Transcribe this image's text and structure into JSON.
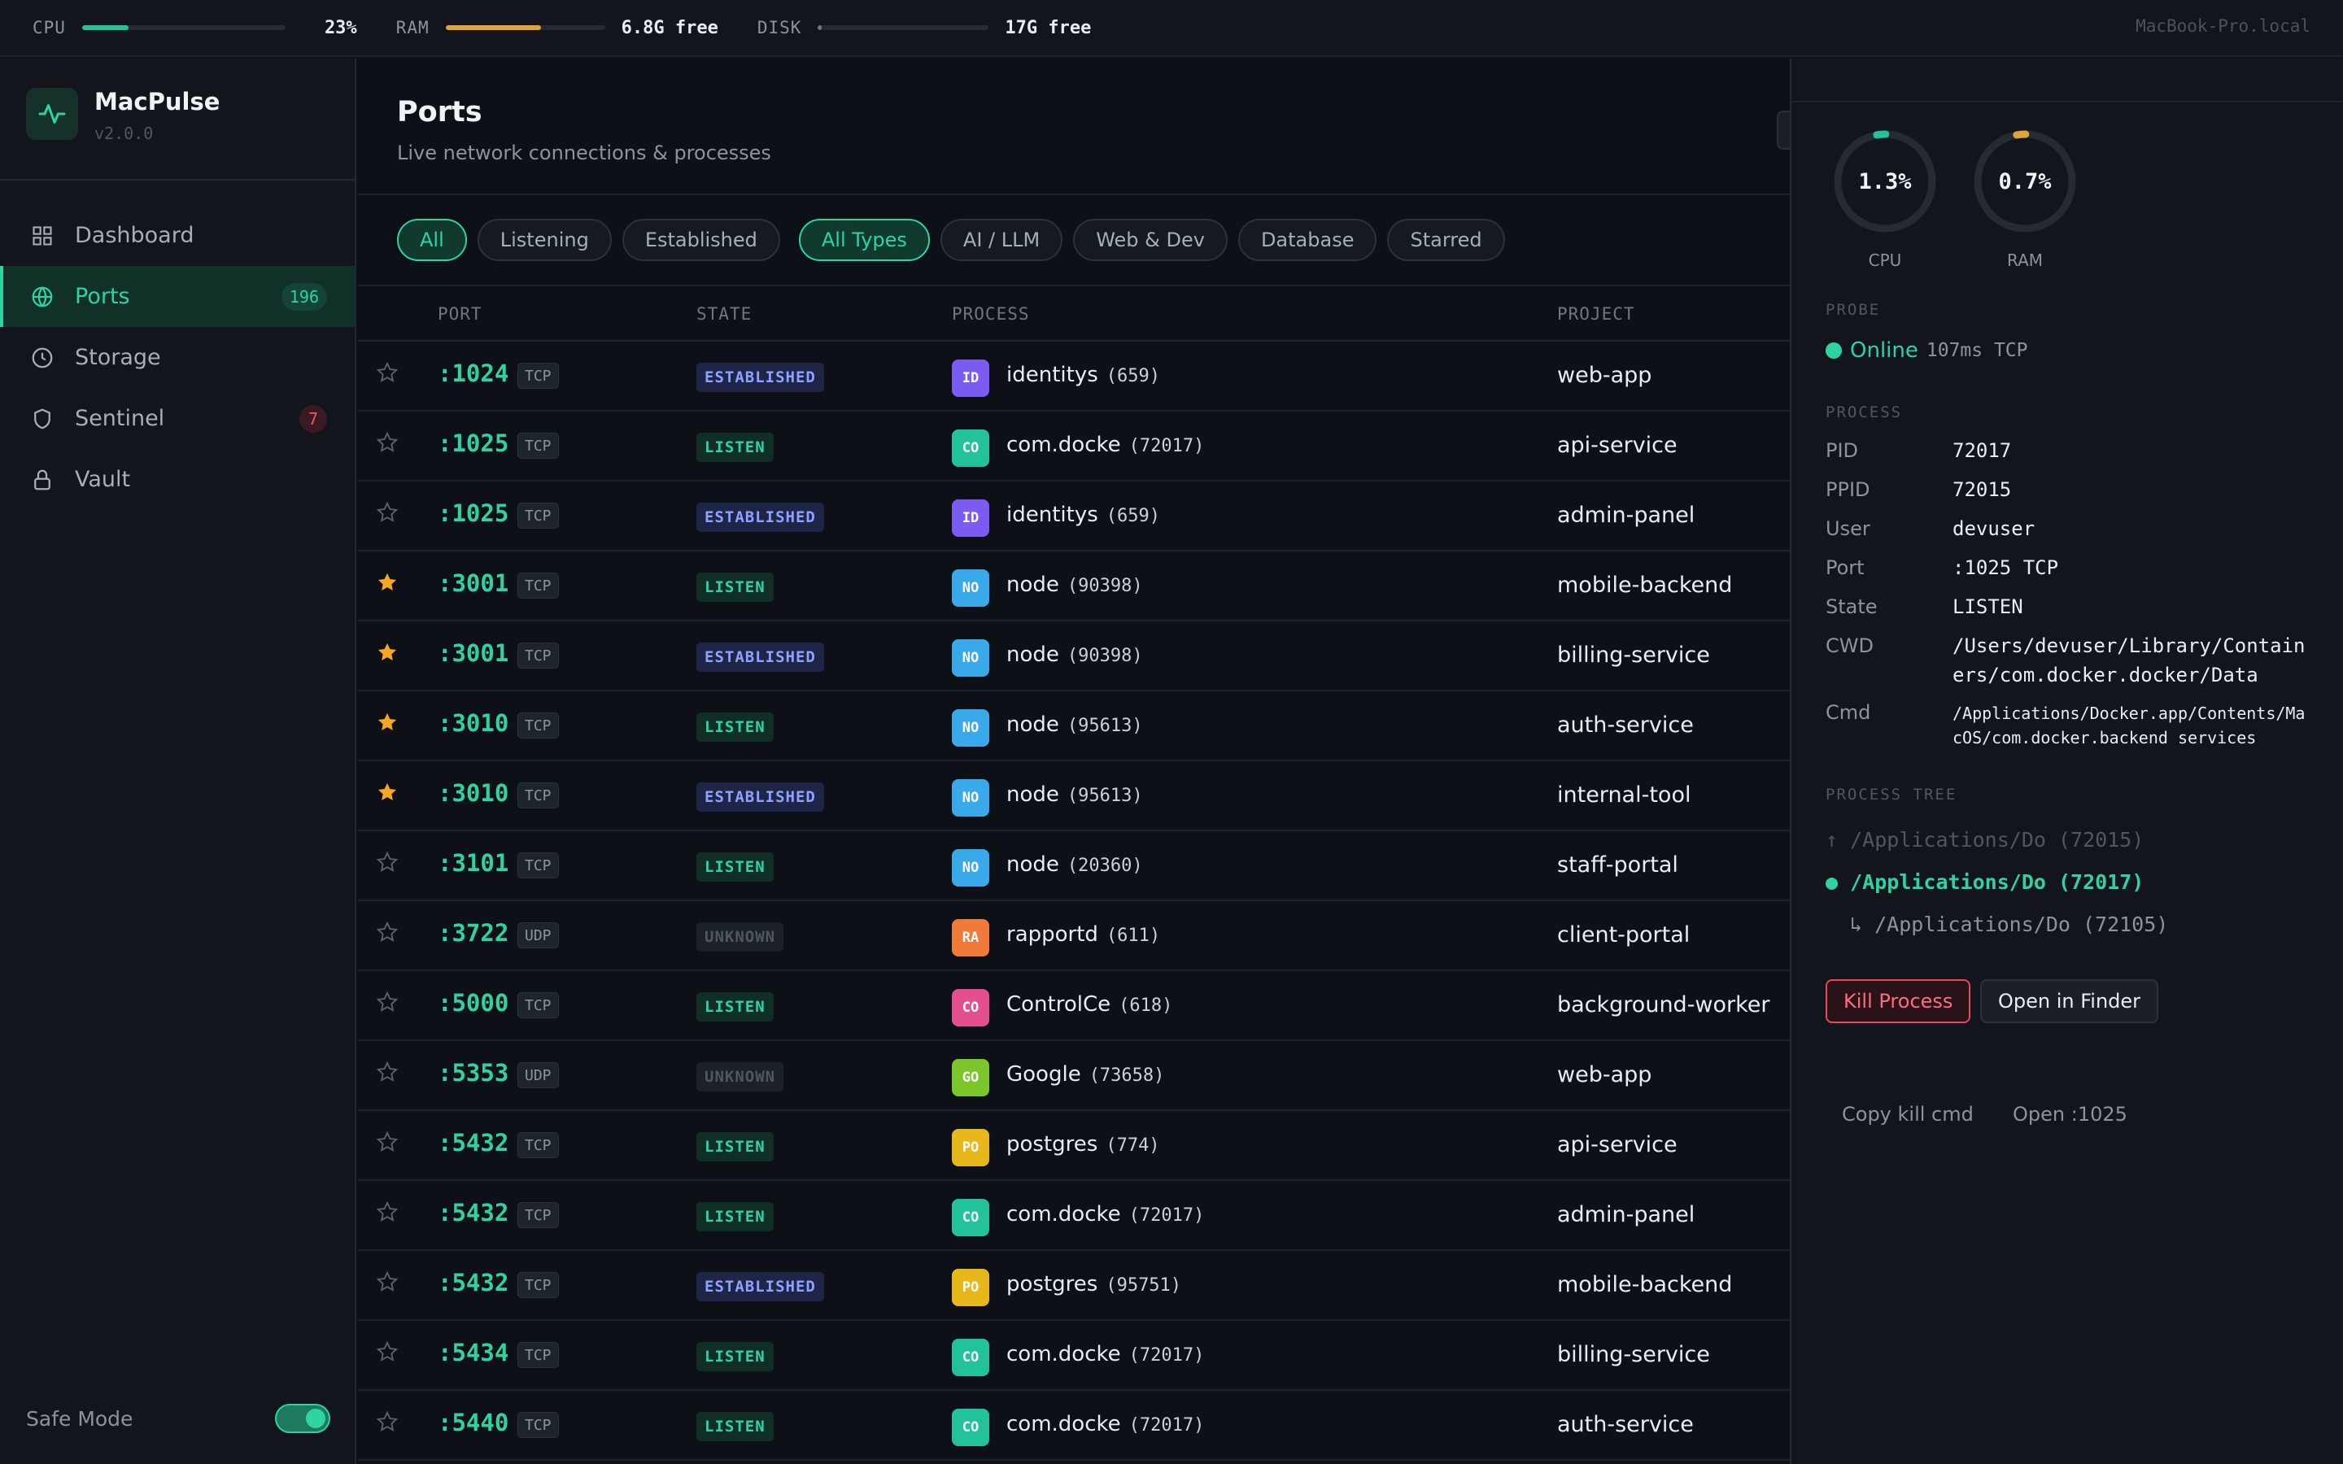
{
  "topbar": {
    "cpu": {
      "label": "CPU",
      "value": "23%",
      "fraction": 0.23,
      "color": "#22c39a"
    },
    "ram": {
      "label": "RAM",
      "value": "6.8G free",
      "fraction": 0.6,
      "color": "#e2a436"
    },
    "disk": {
      "label": "DISK",
      "value": "17G free",
      "fraction": 0.02,
      "color": "#6e7781"
    },
    "host": "MacBook-Pro.local"
  },
  "sidebar": {
    "app_name": "MacPulse",
    "version": "v2.0.0",
    "items": [
      {
        "label": "Dashboard",
        "icon": "grid-icon",
        "badge": ""
      },
      {
        "label": "Ports",
        "icon": "globe-icon",
        "badge": "196",
        "active": true
      },
      {
        "label": "Storage",
        "icon": "clock-icon",
        "badge": ""
      },
      {
        "label": "Sentinel",
        "icon": "shield-icon",
        "badge": "7"
      },
      {
        "label": "Vault",
        "icon": "lock-icon",
        "badge": ""
      }
    ],
    "safe_mode_label": "Safe Mode",
    "safe_mode_on": true
  },
  "main": {
    "title": "Ports",
    "subtitle": "Live network connections & processes",
    "filters": [
      "All",
      "Listening",
      "Established"
    ],
    "type_filters": [
      "All Types",
      "AI / LLM",
      "Web & Dev",
      "Database",
      "Starred"
    ],
    "columns": {
      "port": "PORT",
      "state": "STATE",
      "process": "PROCESS",
      "project": "PROJECT"
    },
    "rows": [
      {
        "starred": false,
        "port": ":1024",
        "proto": "TCP",
        "state": "ESTABLISHED",
        "icon": "ID",
        "icon_color": "#7c5cf0",
        "process": "identitys",
        "pid": "(659)",
        "project": "web-app"
      },
      {
        "starred": false,
        "port": ":1025",
        "proto": "TCP",
        "state": "LISTEN",
        "icon": "CO",
        "icon_color": "#22c39a",
        "process": "com.docke",
        "pid": "(72017)",
        "project": "api-service"
      },
      {
        "starred": false,
        "port": ":1025",
        "proto": "TCP",
        "state": "ESTABLISHED",
        "icon": "ID",
        "icon_color": "#7c5cf0",
        "process": "identitys",
        "pid": "(659)",
        "project": "admin-panel"
      },
      {
        "starred": true,
        "port": ":3001",
        "proto": "TCP",
        "state": "LISTEN",
        "icon": "NO",
        "icon_color": "#3aa9ea",
        "process": "node",
        "pid": "(90398)",
        "project": "mobile-backend"
      },
      {
        "starred": true,
        "port": ":3001",
        "proto": "TCP",
        "state": "ESTABLISHED",
        "icon": "NO",
        "icon_color": "#3aa9ea",
        "process": "node",
        "pid": "(90398)",
        "project": "billing-service"
      },
      {
        "starred": true,
        "port": ":3010",
        "proto": "TCP",
        "state": "LISTEN",
        "icon": "NO",
        "icon_color": "#3aa9ea",
        "process": "node",
        "pid": "(95613)",
        "project": "auth-service"
      },
      {
        "starred": true,
        "port": ":3010",
        "proto": "TCP",
        "state": "ESTABLISHED",
        "icon": "NO",
        "icon_color": "#3aa9ea",
        "process": "node",
        "pid": "(95613)",
        "project": "internal-tool"
      },
      {
        "starred": false,
        "port": ":3101",
        "proto": "TCP",
        "state": "LISTEN",
        "icon": "NO",
        "icon_color": "#3aa9ea",
        "process": "node",
        "pid": "(20360)",
        "project": "staff-portal"
      },
      {
        "starred": false,
        "port": ":3722",
        "proto": "UDP",
        "state": "UNKNOWN",
        "icon": "RA",
        "icon_color": "#f07a3a",
        "process": "rapportd",
        "pid": "(611)",
        "project": "client-portal"
      },
      {
        "starred": false,
        "port": ":5000",
        "proto": "TCP",
        "state": "LISTEN",
        "icon": "CO",
        "icon_color": "#e4508f",
        "process": "ControlCe",
        "pid": "(618)",
        "project": "background-worker"
      },
      {
        "starred": false,
        "port": ":5353",
        "proto": "UDP",
        "state": "UNKNOWN",
        "icon": "GO",
        "icon_color": "#7cc62b",
        "process": "Google",
        "pid": "(73658)",
        "project": "web-app"
      },
      {
        "starred": false,
        "port": ":5432",
        "proto": "TCP",
        "state": "LISTEN",
        "icon": "PO",
        "icon_color": "#e8b71c",
        "process": "postgres",
        "pid": "(774)",
        "project": "api-service"
      },
      {
        "starred": false,
        "port": ":5432",
        "proto": "TCP",
        "state": "LISTEN",
        "icon": "CO",
        "icon_color": "#22c39a",
        "process": "com.docke",
        "pid": "(72017)",
        "project": "admin-panel"
      },
      {
        "starred": false,
        "port": ":5432",
        "proto": "TCP",
        "state": "ESTABLISHED",
        "icon": "PO",
        "icon_color": "#e8b71c",
        "process": "postgres",
        "pid": "(95751)",
        "project": "mobile-backend"
      },
      {
        "starred": false,
        "port": ":5434",
        "proto": "TCP",
        "state": "LISTEN",
        "icon": "CO",
        "icon_color": "#22c39a",
        "process": "com.docke",
        "pid": "(72017)",
        "project": "billing-service"
      },
      {
        "starred": false,
        "port": ":5440",
        "proto": "TCP",
        "state": "LISTEN",
        "icon": "CO",
        "icon_color": "#22c39a",
        "process": "com.docke",
        "pid": "(72017)",
        "project": "auth-service"
      }
    ]
  },
  "panel": {
    "gauges": [
      {
        "label": "CPU",
        "value": "1.3%",
        "fraction": 0.013,
        "color": "#22c39a"
      },
      {
        "label": "RAM",
        "value": "0.7%",
        "fraction": 0.007,
        "color": "#e2a436"
      }
    ],
    "probe_heading": "PROBE",
    "probe_status": "Online",
    "probe_detail": "107ms TCP",
    "process_heading": "PROCESS",
    "details": [
      {
        "key": "PID",
        "value": "72017"
      },
      {
        "key": "PPID",
        "value": "72015"
      },
      {
        "key": "User",
        "value": "devuser"
      },
      {
        "key": "Port",
        "value": ":1025 TCP"
      },
      {
        "key": "State",
        "value": "LISTEN"
      },
      {
        "key": "CWD",
        "value": "/Users/devuser/Library/Containers/com.docker.docker/Data"
      },
      {
        "key": "Cmd",
        "value": "/Applications/Docker.app/Contents/MacOS/com.docker.backend services"
      }
    ],
    "tree_heading": "PROCESS TREE",
    "tree": {
      "parent": "/Applications/Do (72015)",
      "current": "/Applications/Do (72017)",
      "child": "/Applications/Do (72105)"
    },
    "kill_label": "Kill Process",
    "finder_label": "Open in Finder",
    "copy_label": "Copy kill cmd",
    "open_label": "Open :1025"
  }
}
